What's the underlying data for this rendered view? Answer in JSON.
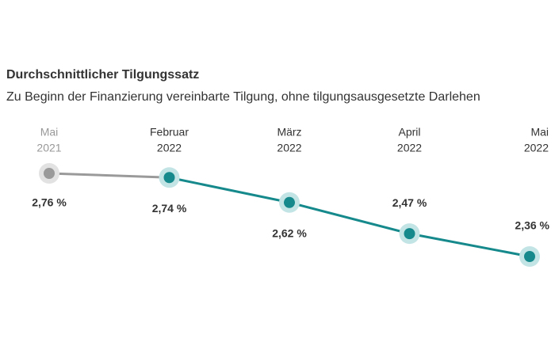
{
  "chart_data": {
    "type": "line",
    "title": "Durchschnittlicher Tilgungssatz",
    "subtitle": "Zu Beginn der Finanzierung vereinbarte Tilgung, ohne tilgungsausgesetzte Darlehen",
    "categories": [
      "Mai",
      "Februar",
      "März",
      "April",
      "Mai"
    ],
    "category_years": [
      "2021",
      "2022",
      "2022",
      "2022",
      "2022"
    ],
    "values": [
      2.76,
      2.74,
      2.62,
      2.47,
      2.36
    ],
    "value_labels": [
      "2,76 %",
      "2,74 %",
      "2,62 %",
      "2,47 %",
      "2,36 %"
    ],
    "colors": [
      "#9a9a9a",
      "#15898b",
      "#15898b",
      "#15898b",
      "#15898b"
    ]
  }
}
